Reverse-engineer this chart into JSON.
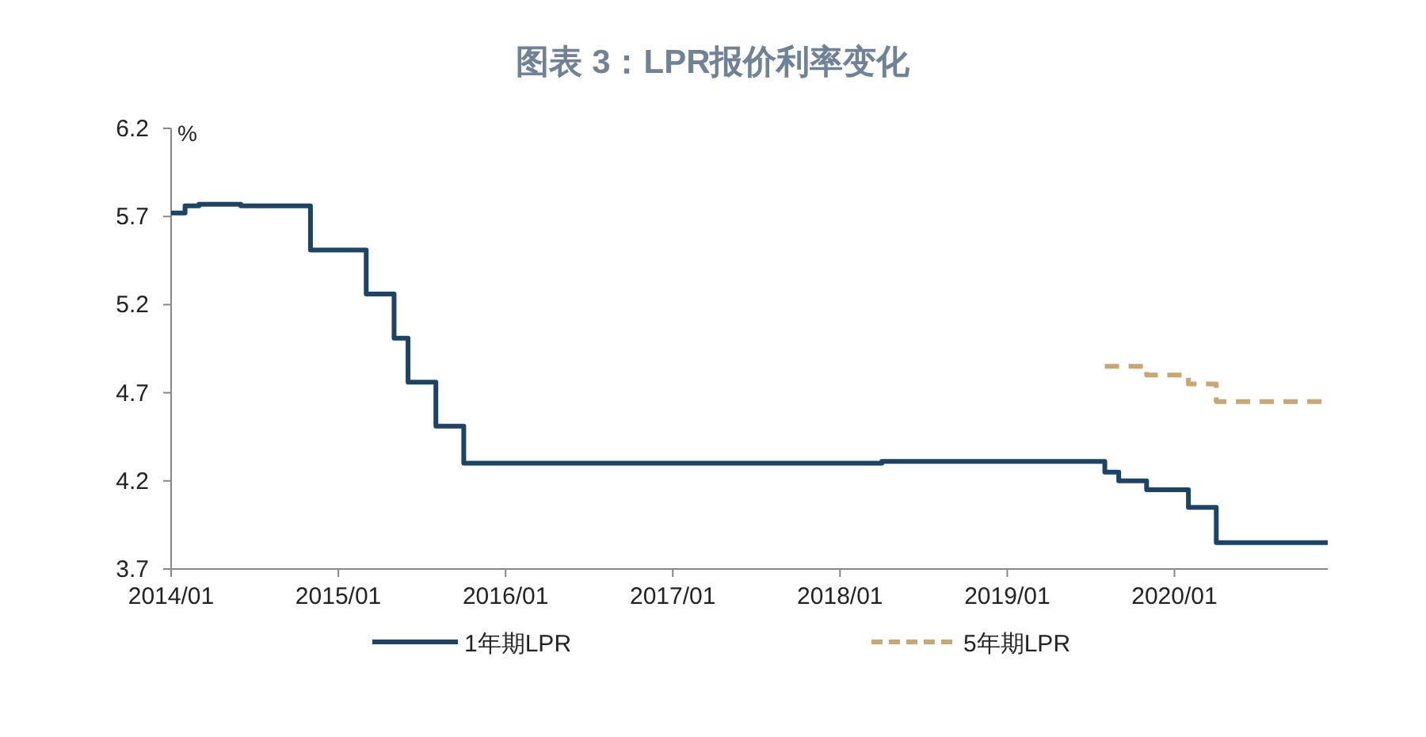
{
  "chart_data": {
    "type": "step",
    "title": "图表 3：LPR报价利率变化",
    "ylabel": "%",
    "series": [
      {
        "name": "1年期LPR",
        "color": "#1d4466",
        "line_style": "solid",
        "x": [
          "2014-01",
          "2014-02",
          "2014-03",
          "2014-06",
          "2014-11",
          "2015-03",
          "2015-05",
          "2015-06",
          "2015-08",
          "2015-10",
          "2018-04",
          "2019-08",
          "2019-09",
          "2019-11",
          "2020-02",
          "2020-04",
          "2020-12"
        ],
        "values": [
          5.72,
          5.76,
          5.77,
          5.76,
          5.51,
          5.26,
          5.01,
          4.76,
          4.51,
          4.3,
          4.31,
          4.25,
          4.2,
          4.15,
          4.05,
          3.85,
          3.85
        ]
      },
      {
        "name": "5年期LPR",
        "color": "#c8a774",
        "line_style": "dashed",
        "x": [
          "2019-08",
          "2019-11",
          "2020-02",
          "2020-04",
          "2020-12"
        ],
        "values": [
          4.85,
          4.8,
          4.75,
          4.65,
          4.65
        ]
      }
    ],
    "xlim": [
      "2014-01",
      "2020-12"
    ],
    "xticks": [
      {
        "value": "2014-01",
        "label": "2014/01"
      },
      {
        "value": "2015-01",
        "label": "2015/01"
      },
      {
        "value": "2016-01",
        "label": "2016/01"
      },
      {
        "value": "2017-01",
        "label": "2017/01"
      },
      {
        "value": "2018-01",
        "label": "2018/01"
      },
      {
        "value": "2019-01",
        "label": "2019/01"
      },
      {
        "value": "2020-01",
        "label": "2020/01"
      }
    ],
    "ylim": [
      3.7,
      6.2
    ],
    "yticks": [
      3.7,
      4.2,
      4.7,
      5.2,
      5.7,
      6.2
    ],
    "grid": false,
    "legend": "bottom"
  }
}
